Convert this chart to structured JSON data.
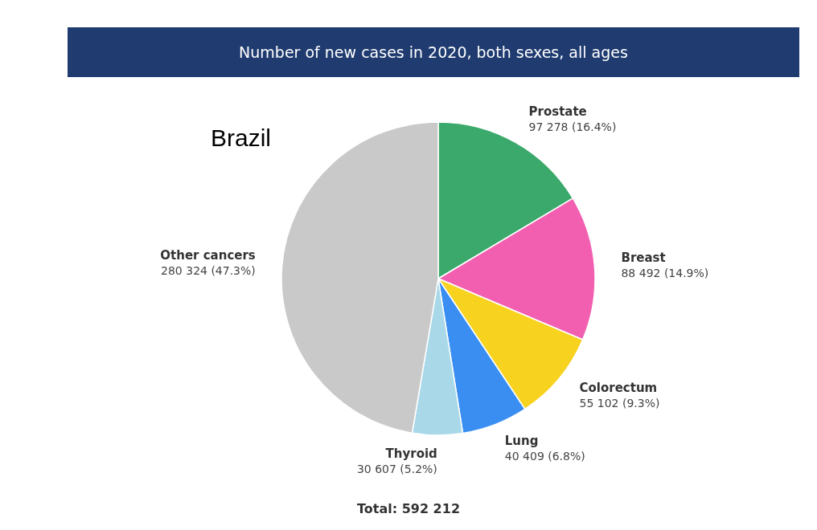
{
  "chart_data": {
    "type": "pie",
    "title": "Number of new cases in 2020, both sexes, all ages",
    "subtitle": "Brazil",
    "categories": [
      "Prostate",
      "Breast",
      "Colorectum",
      "Lung",
      "Thyroid",
      "Other cancers"
    ],
    "values": [
      97278,
      88492,
      55102,
      40409,
      30607,
      280324
    ],
    "value_labels": [
      "97 278 (16.4%)",
      "88 492 (14.9%)",
      "55 102 (9.3%)",
      "40 409 (6.8%)",
      "30 607 (5.2%)",
      "280 324 (47.3%)"
    ],
    "colors": [
      "#3aa96b",
      "#f25fb0",
      "#f7d21e",
      "#3a8ef2",
      "#a9d9e9",
      "#c9c9c9"
    ],
    "annotations": [
      "Total: 592 212"
    ],
    "legend": false
  }
}
